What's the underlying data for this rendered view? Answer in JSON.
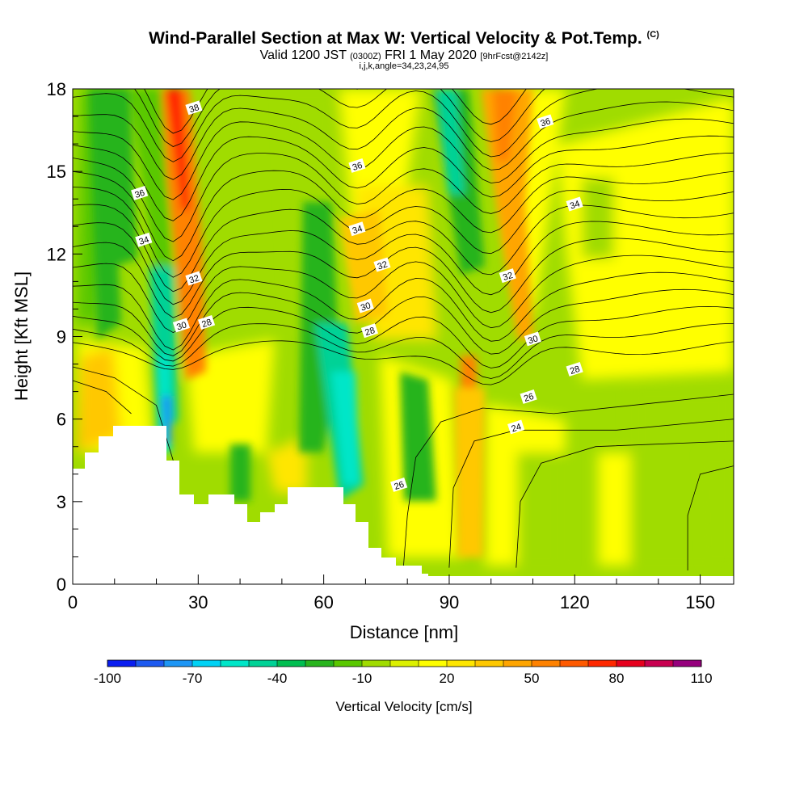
{
  "header": {
    "title": "Wind-Parallel Section at Max W: Vertical Velocity & Pot.Temp.",
    "copyright": "(C)",
    "valid_prefix": "Valid 1200 JST",
    "valid_z": "(0300Z)",
    "valid_date": "FRI 1 May 2020",
    "forecast": "[9hrFcst@2142z]",
    "grid_info": "i,j,k,angle=34,23,24,95"
  },
  "chart_data": {
    "type": "heatmap",
    "title": "Wind-Parallel Section at Max W: Vertical Velocity & Pot.Temp.",
    "xlabel": "Distance [nm]",
    "ylabel": "Height [Kft MSL]",
    "xlim": [
      0,
      158
    ],
    "ylim": [
      0,
      18
    ],
    "xticks": [
      0,
      30,
      60,
      90,
      120,
      150
    ],
    "yticks": [
      0,
      3,
      6,
      9,
      12,
      15,
      18
    ],
    "grid": false,
    "colorbar": {
      "label": "Vertical Velocity [cm/s]",
      "levels": [
        -100,
        -90,
        -80,
        -70,
        -60,
        -50,
        -40,
        -30,
        -20,
        -10,
        0,
        10,
        20,
        30,
        40,
        50,
        60,
        70,
        80,
        90,
        100,
        110
      ],
      "tick_labels": [
        "-100",
        "-70",
        "-40",
        "-10",
        "20",
        "50",
        "80",
        "110"
      ],
      "colors": [
        "#0a1ef0",
        "#1e5af0",
        "#1e96f5",
        "#00d2f5",
        "#00e6c8",
        "#00d296",
        "#00be50",
        "#28b41e",
        "#5ac800",
        "#a0dc00",
        "#dcf000",
        "#ffff00",
        "#ffe600",
        "#ffc800",
        "#ffa500",
        "#ff8200",
        "#ff5a00",
        "#ff2800",
        "#e6001e",
        "#c80050",
        "#96007d",
        "#5a0096"
      ]
    },
    "pot_temp_contour_labels": [
      {
        "label": "38",
        "x": 29,
        "y": 17.3
      },
      {
        "label": "36",
        "x": 16,
        "y": 14.2
      },
      {
        "label": "34",
        "x": 17,
        "y": 12.5
      },
      {
        "label": "32",
        "x": 29,
        "y": 11.1
      },
      {
        "label": "30",
        "x": 26,
        "y": 9.4
      },
      {
        "label": "28",
        "x": 32,
        "y": 9.5
      },
      {
        "label": "36",
        "x": 68,
        "y": 15.2
      },
      {
        "label": "34",
        "x": 68,
        "y": 12.9
      },
      {
        "label": "32",
        "x": 74,
        "y": 11.6
      },
      {
        "label": "30",
        "x": 70,
        "y": 10.1
      },
      {
        "label": "28",
        "x": 71,
        "y": 9.2
      },
      {
        "label": "26",
        "x": 78,
        "y": 3.6
      },
      {
        "label": "36",
        "x": 113,
        "y": 16.8
      },
      {
        "label": "34",
        "x": 120,
        "y": 13.8
      },
      {
        "label": "32",
        "x": 104,
        "y": 11.2
      },
      {
        "label": "30",
        "x": 110,
        "y": 8.9
      },
      {
        "label": "28",
        "x": 120,
        "y": 7.8
      },
      {
        "label": "26",
        "x": 109,
        "y": 6.8
      },
      {
        "label": "24",
        "x": 106,
        "y": 5.7
      }
    ]
  }
}
